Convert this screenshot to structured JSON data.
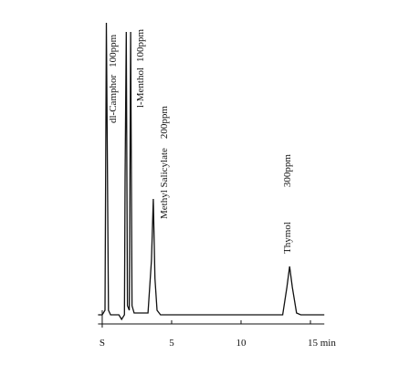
{
  "chart_data": {
    "type": "line",
    "x": [
      -0.3,
      0,
      0.2,
      0.3,
      0.45,
      0.6,
      1.2,
      1.4,
      1.6,
      1.65,
      1.73,
      1.82,
      1.95,
      2.05,
      2.15,
      2.3,
      3.3,
      3.55,
      3.68,
      3.8,
      3.95,
      4.2,
      13.0,
      13.3,
      13.5,
      13.7,
      14.0,
      14.3,
      16.0
    ],
    "values": [
      0,
      0,
      5,
      320,
      5,
      0,
      0,
      -5,
      0,
      150,
      310,
      10,
      5,
      310,
      10,
      2,
      2,
      60,
      127,
      40,
      5,
      0,
      0,
      30,
      53,
      30,
      2,
      0,
      0
    ],
    "color": "#111111",
    "xlim": [
      -0.3,
      16
    ],
    "ylim": [
      -10,
      330
    ],
    "xticks": [
      {
        "value": 0,
        "label": "S"
      },
      5,
      10,
      {
        "value": 15,
        "label": "15 min"
      }
    ],
    "annotations": [
      {
        "label": "dl-Camphor",
        "amount": "100ppm"
      },
      {
        "label": "l-Menthol",
        "amount": "100ppm"
      },
      {
        "label": "Methyl Salicylate",
        "amount": "200ppm"
      },
      {
        "label": "Thymol",
        "amount": "300ppm"
      }
    ]
  }
}
